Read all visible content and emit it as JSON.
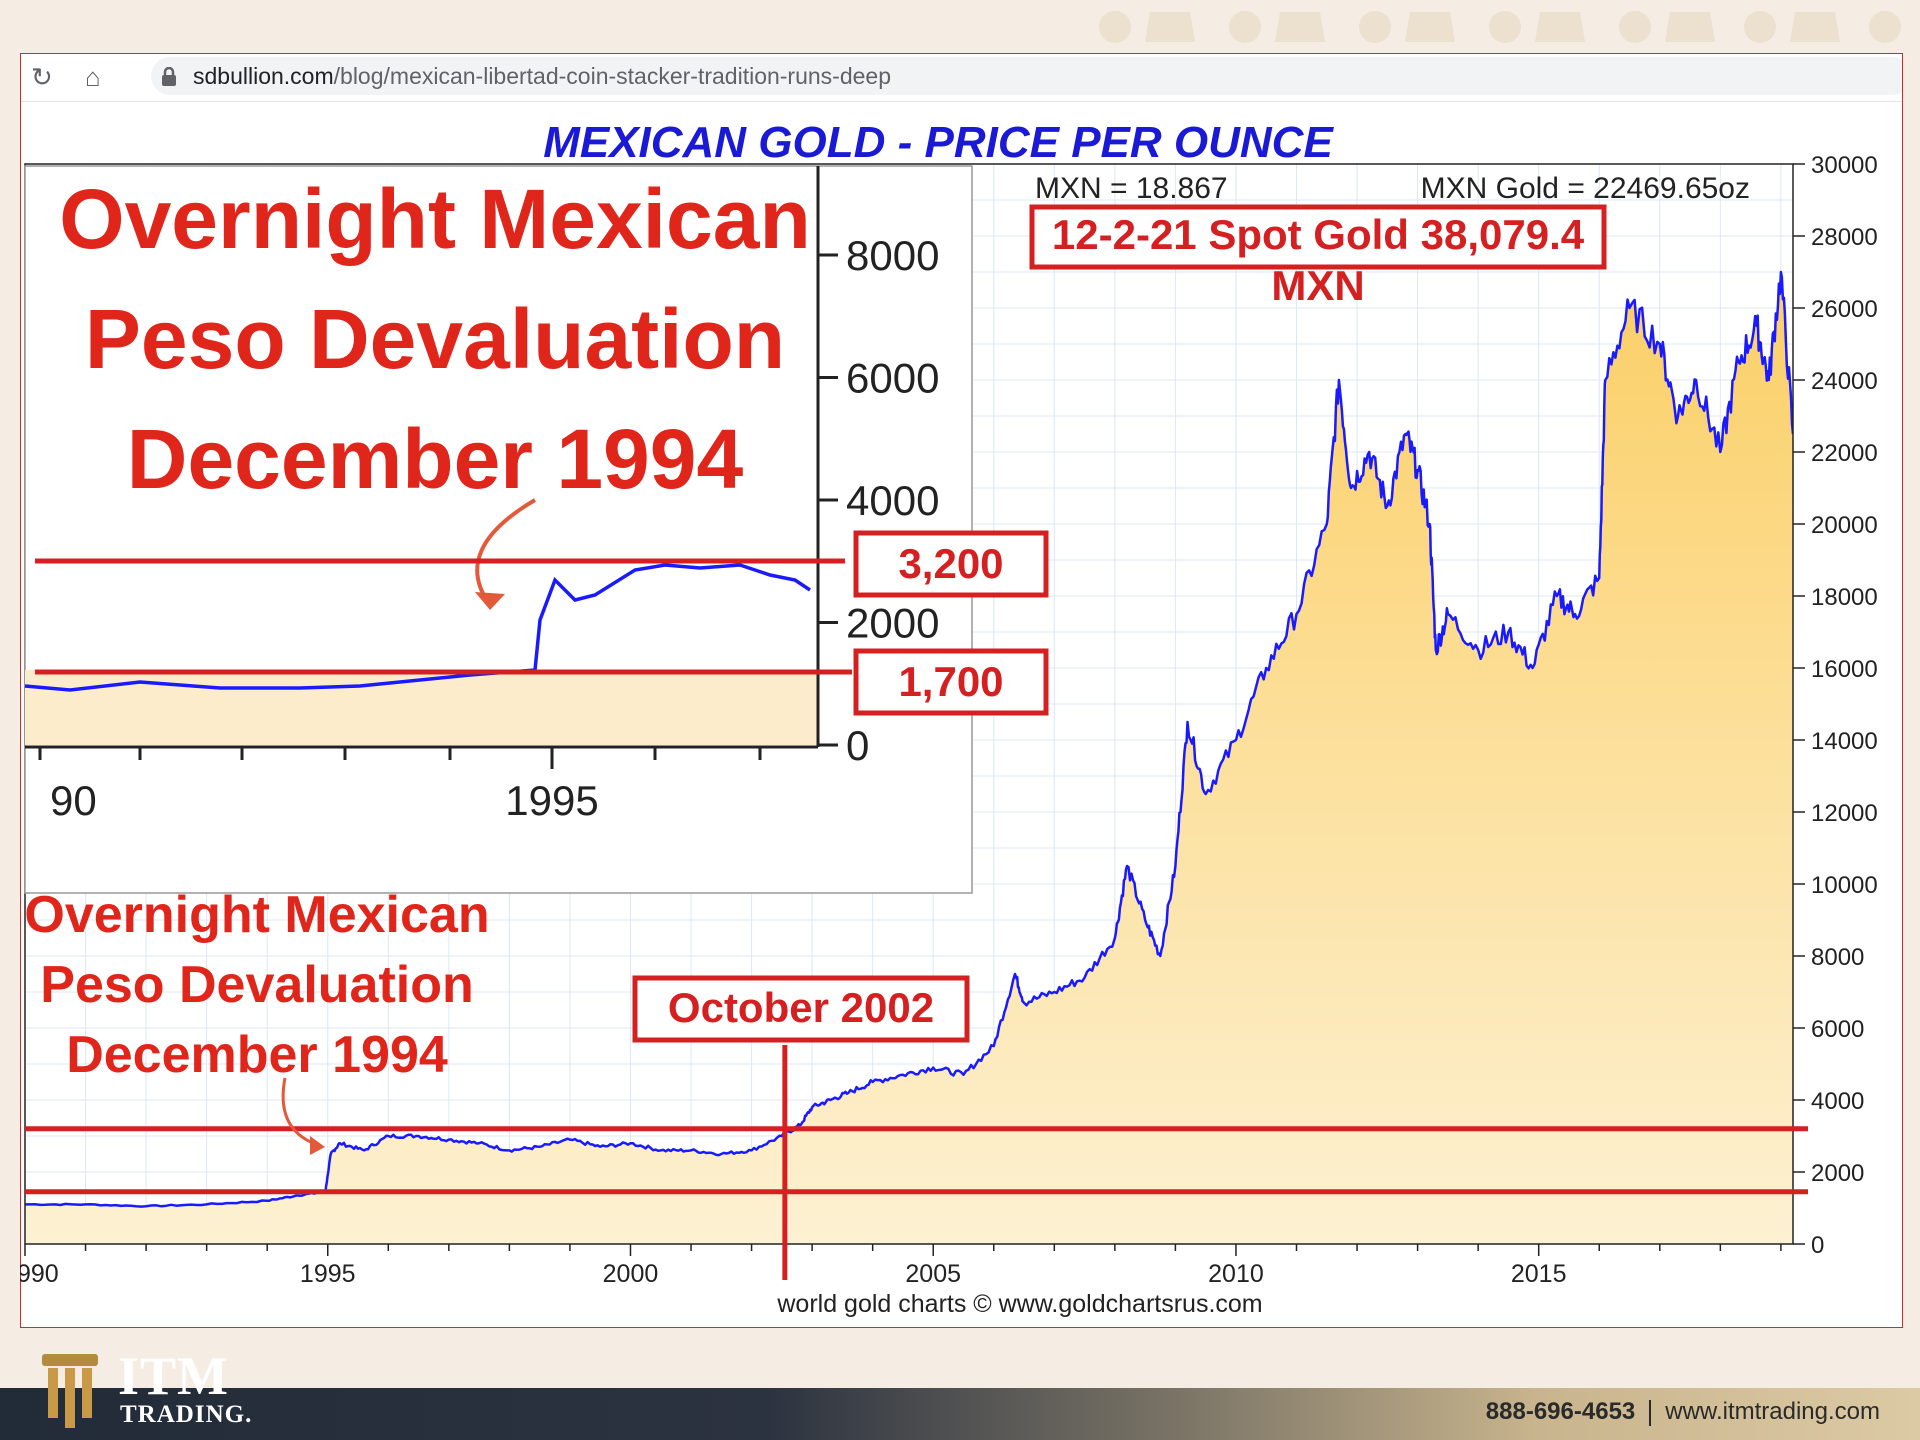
{
  "browser": {
    "url_host": "sdbullion.com",
    "url_path": "/blog/mexican-libertad-coin-stacker-tradition-runs-deep"
  },
  "chart_data": {
    "type": "area",
    "title": "MEXICAN GOLD - PRICE PER OUNCE",
    "header_left": "MXN = 18.867",
    "header_right": "MXN Gold = 22469.65oz",
    "source": "world gold charts © www.goldchartsrus.com",
    "x_label_start": "990",
    "x_ticks": [
      "1995",
      "2000",
      "2005",
      "2010",
      "2015"
    ],
    "xlim": [
      1990,
      2019.2
    ],
    "ylim": [
      0,
      30000
    ],
    "y_ticks": [
      0,
      2000,
      4000,
      6000,
      8000,
      10000,
      12000,
      14000,
      16000,
      18000,
      20000,
      22000,
      24000,
      26000,
      28000,
      30000
    ],
    "series": [
      {
        "x": [
          1990.0,
          1991.0,
          1992.0,
          1993.0,
          1994.0,
          1994.5,
          1994.96,
          1995.05,
          1995.2,
          1995.6,
          1996.0,
          1996.5,
          1997.0,
          1997.5,
          1998.0,
          1998.5,
          1999.0,
          1999.5,
          2000.0,
          2000.5,
          2001.0,
          2001.5,
          2002.0,
          2002.5,
          2002.8,
          2003.0,
          2003.3,
          2003.6,
          2004.0,
          2004.5,
          2005.0,
          2005.5,
          2006.0,
          2006.35,
          2006.5,
          2007.0,
          2007.5,
          2008.0,
          2008.2,
          2008.5,
          2008.75,
          2009.0,
          2009.2,
          2009.5,
          2010.0,
          2010.5,
          2011.0,
          2011.5,
          2011.7,
          2011.9,
          2012.2,
          2012.5,
          2012.8,
          2013.0,
          2013.2,
          2013.3,
          2013.5,
          2014.0,
          2014.5,
          2014.9,
          2015.3,
          2015.6,
          2016.0,
          2016.1,
          2016.5,
          2017.0,
          2017.3,
          2017.6,
          2018.0,
          2018.3,
          2018.6,
          2018.8,
          2019.0,
          2019.2
        ],
        "y": [
          1100,
          1100,
          1050,
          1100,
          1200,
          1350,
          1450,
          2500,
          2800,
          2600,
          3000,
          3000,
          2900,
          2800,
          2600,
          2700,
          2900,
          2700,
          2800,
          2600,
          2600,
          2500,
          2600,
          3000,
          3300,
          3800,
          4000,
          4200,
          4500,
          4700,
          4900,
          4700,
          5500,
          7500,
          6700,
          7000,
          7400,
          8500,
          10500,
          9000,
          8000,
          10500,
          14500,
          12500,
          14000,
          16000,
          17500,
          20000,
          24000,
          21000,
          22000,
          20500,
          22500,
          21500,
          20000,
          16500,
          17500,
          16500,
          17000,
          16000,
          18000,
          17500,
          18500,
          24000,
          26000,
          25000,
          23000,
          24000,
          22000,
          24500,
          25500,
          24000,
          27000,
          22500
        ]
      }
    ],
    "inset": {
      "text_lines": [
        "Overnight Mexican",
        "Peso Devaluation",
        "December 1994"
      ],
      "y_ticks": [
        0,
        2000,
        4000,
        6000,
        8000
      ],
      "x_label_start": "90",
      "x_label": "1995"
    },
    "annotations": {
      "spot_box_line1": "12-2-21 Spot Gold 38,079.4",
      "spot_box_line2": "MXN",
      "label_3200": "3,200",
      "label_1700": "1,700",
      "october_label": "October 2002",
      "devaluation_lines": [
        "Overnight Mexican",
        "Peso Devaluation",
        "December 1994"
      ]
    },
    "colors": {
      "line": "#1a1aff",
      "fill_top": "#fbcf66",
      "fill_bottom": "#fdf1d3",
      "annotation": "#d42020",
      "title": "#1a1ad6"
    }
  },
  "footer": {
    "logo_word": "ITM",
    "logo_sub": "TRADING.",
    "phone": "888-696-4653",
    "website": "www.itmtrading.com"
  }
}
